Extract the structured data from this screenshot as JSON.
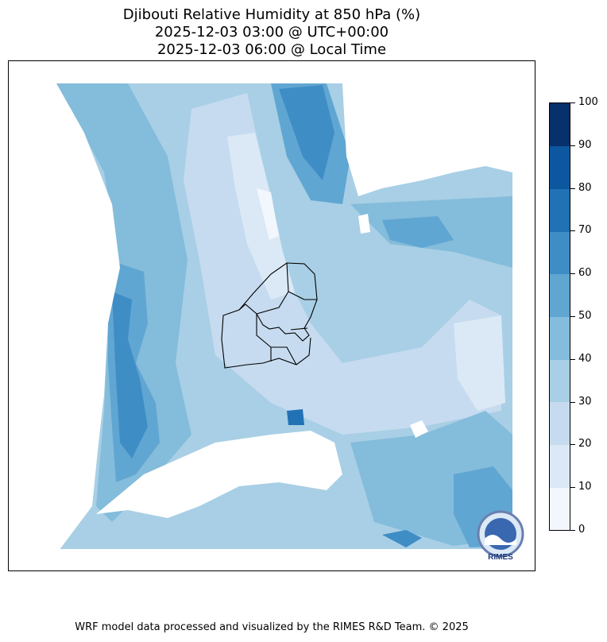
{
  "titles": {
    "line1": "Djibouti Relative Humidity at 850 hPa (%)",
    "line2": "2025-12-03 03:00 @ UTC+00:00",
    "line3": "2025-12-03 06:00 @ Local Time"
  },
  "colorbar": {
    "ticks": [
      "0",
      "10",
      "20",
      "30",
      "40",
      "50",
      "60",
      "70",
      "80",
      "90",
      "100"
    ],
    "colors": [
      "#f2f7fd",
      "#dbe9f6",
      "#c6dbef",
      "#a8cfe5",
      "#84bcdb",
      "#60a6d2",
      "#3f8dc5",
      "#2171b5",
      "#0d57a1",
      "#08306b"
    ]
  },
  "logo": {
    "text": "RIMES"
  },
  "footer": {
    "credit": "WRF model data processed and visualized by the RIMES R&D Team. © 2025"
  }
}
